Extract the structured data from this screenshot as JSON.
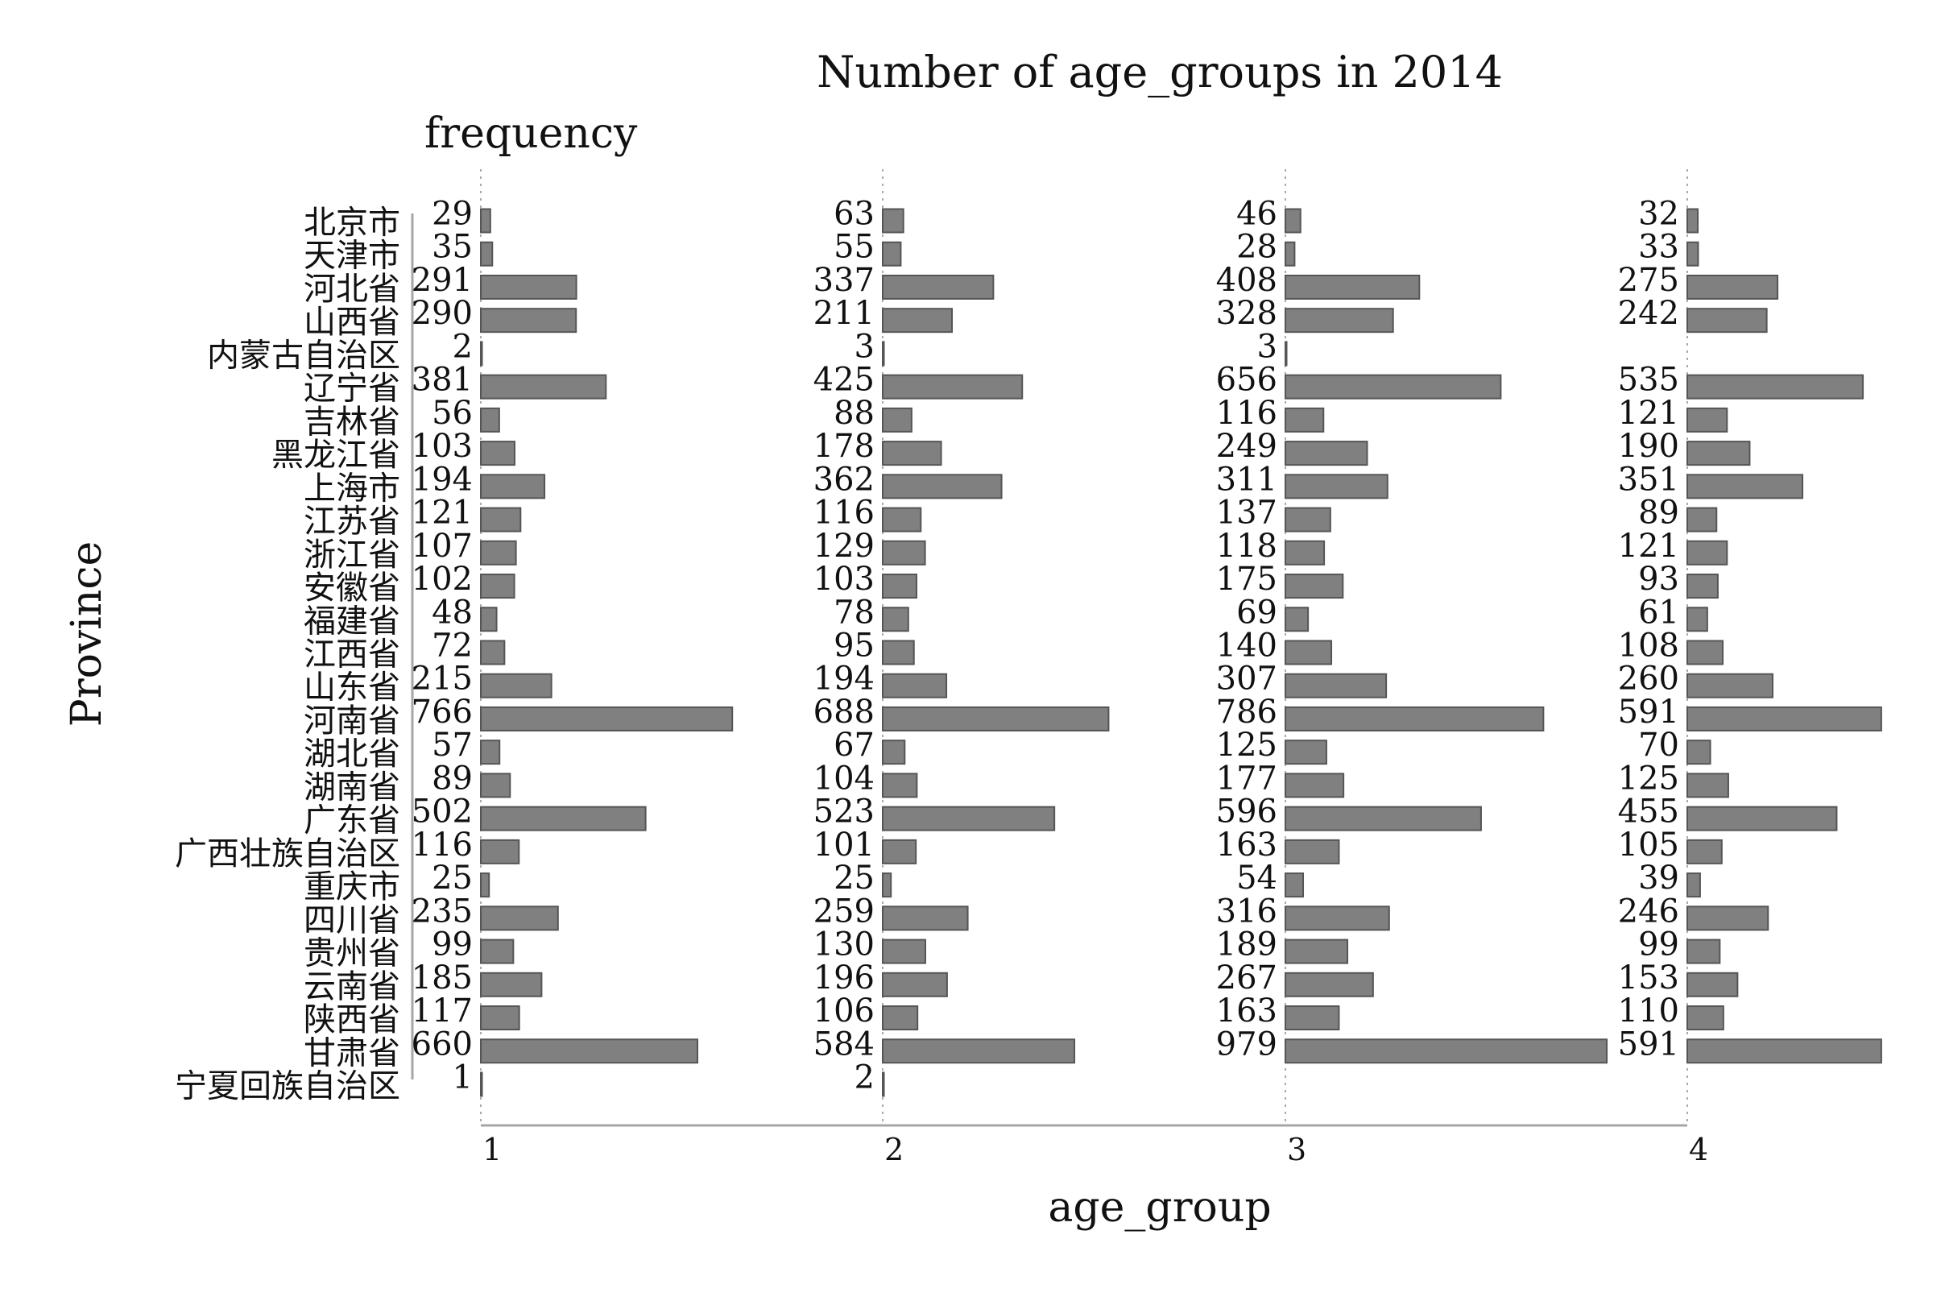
{
  "chart_data": {
    "type": "bar",
    "orientation": "horizontal",
    "facets": "age_group",
    "title": "Number of age_groups in 2014",
    "value_label": "frequency",
    "ylabel": "Province",
    "xlabel": "age_group",
    "facet_labels": [
      "1",
      "2",
      "3",
      "4"
    ],
    "categories": [
      "北京市",
      "天津市",
      "河北省",
      "山西省",
      "内蒙古自治区",
      "辽宁省",
      "吉林省",
      "黑龙江省",
      "上海市",
      "江苏省",
      "浙江省",
      "安徽省",
      "福建省",
      "江西省",
      "山东省",
      "河南省",
      "湖北省",
      "湖南省",
      "广东省",
      "广西壮族自治区",
      "重庆市",
      "四川省",
      "贵州省",
      "云南省",
      "陕西省",
      "甘肃省",
      "宁夏回族自治区"
    ],
    "series": [
      {
        "name": "1",
        "values": [
          29,
          35,
          291,
          290,
          2,
          381,
          56,
          103,
          194,
          121,
          107,
          102,
          48,
          72,
          215,
          766,
          57,
          89,
          502,
          116,
          25,
          235,
          99,
          185,
          117,
          660,
          1
        ]
      },
      {
        "name": "2",
        "values": [
          63,
          55,
          337,
          211,
          3,
          425,
          88,
          178,
          362,
          116,
          129,
          103,
          78,
          95,
          194,
          688,
          67,
          104,
          523,
          101,
          25,
          259,
          130,
          196,
          106,
          584,
          2
        ]
      },
      {
        "name": "3",
        "values": [
          46,
          28,
          408,
          328,
          3,
          656,
          116,
          249,
          311,
          137,
          118,
          175,
          69,
          140,
          307,
          786,
          125,
          177,
          596,
          163,
          54,
          316,
          189,
          267,
          163,
          979,
          null
        ]
      },
      {
        "name": "4",
        "values": [
          32,
          33,
          275,
          242,
          null,
          535,
          121,
          190,
          351,
          89,
          121,
          93,
          61,
          108,
          260,
          591,
          70,
          125,
          455,
          105,
          39,
          246,
          99,
          153,
          110,
          591,
          null
        ]
      }
    ],
    "bar_color": "#808080",
    "grid": false
  }
}
